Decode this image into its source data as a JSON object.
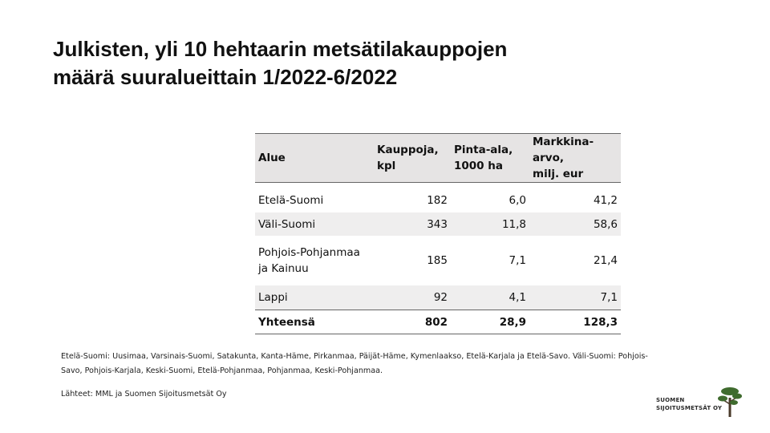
{
  "title": {
    "line1": "Julkisten, yli 10 hehtaarin metsätilakauppojen",
    "line2": "määrä suuralueittain 1/2022-6/2022"
  },
  "table": {
    "headers": {
      "area": "Alue",
      "count_l1": "Kauppoja,",
      "count_l2": "kpl",
      "size_l1": "Pinta-ala,",
      "size_l2": "1000 ha",
      "value_l1": "Markkina-arvo,",
      "value_l2": "milj. eur"
    },
    "rows": [
      {
        "area_l1": "Etelä-Suomi",
        "area_l2": "",
        "count": "182",
        "size": "6,0",
        "value": "41,2"
      },
      {
        "area_l1": "Väli-Suomi",
        "area_l2": "",
        "count": "343",
        "size": "11,8",
        "value": "58,6"
      },
      {
        "area_l1": "Pohjois-Pohjanmaa",
        "area_l2": "ja Kainuu",
        "count": "185",
        "size": "7,1",
        "value": "21,4"
      },
      {
        "area_l1": "Lappi",
        "area_l2": "",
        "count": "92",
        "size": "4,1",
        "value": "7,1"
      }
    ],
    "total": {
      "area": "Yhteensä",
      "count": "802",
      "size": "28,9",
      "value": "128,3"
    }
  },
  "footnote": {
    "line1": "Etelä-Suomi: Uusimaa, Varsinais-Suomi, Satakunta, Kanta-Häme, Pirkanmaa, Päijät-Häme, Kymenlaakso, Etelä-Karjala ja Etelä-Savo. Väli-Suomi: Pohjois-",
    "line2": "Savo, Pohjois-Karjala, Keski-Suomi, Etelä-Pohjanmaa, Pohjanmaa, Keski-Pohjanmaa."
  },
  "sources": "Lähteet: MML ja Suomen Sijoitusmetsät Oy",
  "logo": {
    "line1": "SUOMEN",
    "line2": "SIJOITUSMETSÄT OY",
    "icon": "pine-tree-icon",
    "trunk_color": "#4a3a2a",
    "crown_color": "#3f6b2e"
  }
}
